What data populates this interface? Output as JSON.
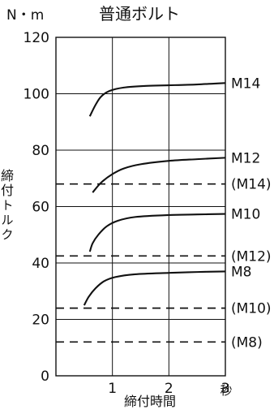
{
  "chart_data": {
    "type": "line",
    "title": "普通ボルト",
    "y_unit": "N・m",
    "ylabel": "締付トルク",
    "xlabel": "締付時間",
    "x_unit": "秒",
    "xlim": [
      0,
      3
    ],
    "ylim": [
      0,
      120
    ],
    "x_ticks": [
      "1",
      "2",
      "3"
    ],
    "y_ticks": [
      "0",
      "20",
      "40",
      "60",
      "80",
      "100",
      "120"
    ],
    "x_tick_values": [
      1,
      2,
      3
    ],
    "y_tick_values": [
      0,
      20,
      40,
      60,
      80,
      100,
      120
    ],
    "grid": true,
    "series": [
      {
        "name": "M14",
        "style": "solid",
        "points": [
          [
            0.6,
            92
          ],
          [
            0.7,
            96
          ],
          [
            0.8,
            99
          ],
          [
            0.95,
            101
          ],
          [
            1.2,
            102.2
          ],
          [
            1.6,
            102.8
          ],
          [
            2.0,
            103
          ],
          [
            2.5,
            103.3
          ],
          [
            3.0,
            103.8
          ]
        ]
      },
      {
        "name": "M12",
        "style": "solid",
        "points": [
          [
            0.65,
            65
          ],
          [
            0.8,
            68.5
          ],
          [
            1.0,
            71.5
          ],
          [
            1.2,
            73.5
          ],
          [
            1.5,
            75
          ],
          [
            2.0,
            76.2
          ],
          [
            2.5,
            76.8
          ],
          [
            3.0,
            77.3
          ]
        ]
      },
      {
        "name": "M10",
        "style": "solid",
        "points": [
          [
            0.6,
            44
          ],
          [
            0.65,
            47
          ],
          [
            0.75,
            50
          ],
          [
            0.9,
            53
          ],
          [
            1.1,
            55
          ],
          [
            1.4,
            56.3
          ],
          [
            2.0,
            57
          ],
          [
            2.5,
            57.2
          ],
          [
            3.0,
            57.4
          ]
        ]
      },
      {
        "name": "M8",
        "style": "solid",
        "points": [
          [
            0.5,
            25
          ],
          [
            0.58,
            28
          ],
          [
            0.7,
            31
          ],
          [
            0.85,
            33.5
          ],
          [
            1.05,
            35
          ],
          [
            1.4,
            36
          ],
          [
            2.0,
            36.5
          ],
          [
            2.5,
            36.8
          ],
          [
            3.0,
            37
          ]
        ]
      },
      {
        "name": "(M14)",
        "style": "dashed",
        "points": [
          [
            0,
            68
          ],
          [
            3,
            68
          ]
        ]
      },
      {
        "name": "(M12)",
        "style": "dashed",
        "points": [
          [
            0,
            42.5
          ],
          [
            3,
            42.5
          ]
        ]
      },
      {
        "name": "(M10)",
        "style": "dashed",
        "points": [
          [
            0,
            24
          ],
          [
            3,
            24
          ]
        ]
      },
      {
        "name": "(M8)",
        "style": "dashed",
        "points": [
          [
            0,
            12
          ],
          [
            3,
            12
          ]
        ]
      }
    ]
  }
}
